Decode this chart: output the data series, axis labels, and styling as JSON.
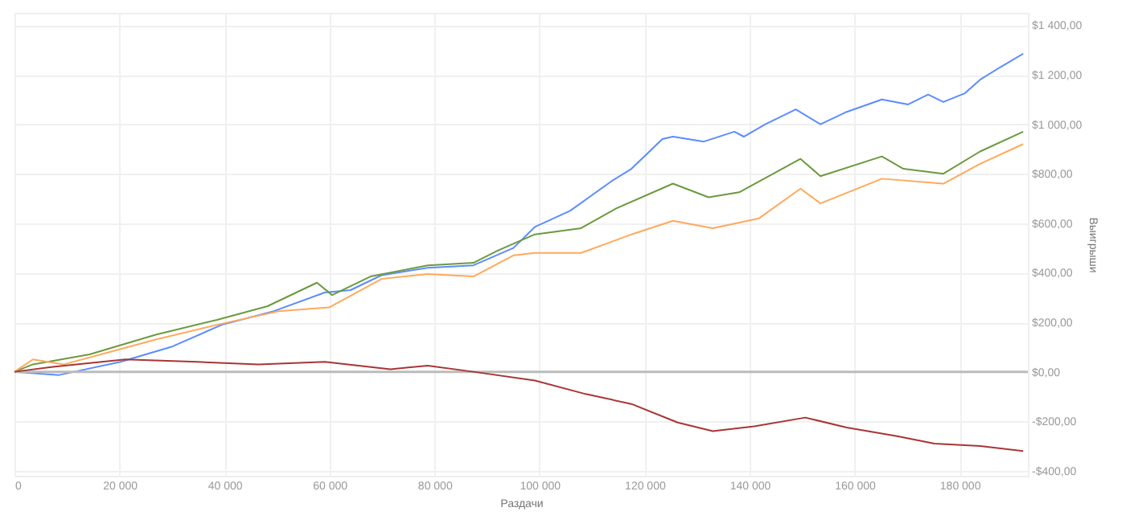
{
  "chart_data": {
    "type": "line",
    "xlabel": "Раздачи",
    "ylabel": "Выигрыши",
    "xlim": [
      0,
      193000
    ],
    "ylim": [
      -420,
      1450
    ],
    "xticks": [
      {
        "value": 0,
        "label": "0"
      },
      {
        "value": 20000,
        "label": "20 000"
      },
      {
        "value": 40000,
        "label": "40 000"
      },
      {
        "value": 60000,
        "label": "60 000"
      },
      {
        "value": 80000,
        "label": "80 000"
      },
      {
        "value": 100000,
        "label": "100 000"
      },
      {
        "value": 120000,
        "label": "120 000"
      },
      {
        "value": 140000,
        "label": "140 000"
      },
      {
        "value": 160000,
        "label": "160 000"
      },
      {
        "value": 180000,
        "label": "180 000"
      }
    ],
    "yticks": [
      {
        "value": -400,
        "label": "-$400,00"
      },
      {
        "value": -200,
        "label": "-$200,00"
      },
      {
        "value": 0,
        "label": "$0,00"
      },
      {
        "value": 200,
        "label": "$200,00"
      },
      {
        "value": 400,
        "label": "$400,00"
      },
      {
        "value": 600,
        "label": "$600,00"
      },
      {
        "value": 800,
        "label": "$800,00"
      },
      {
        "value": 1000,
        "label": "$1 000,00"
      },
      {
        "value": 1200,
        "label": "$1 200,00"
      },
      {
        "value": 1400,
        "label": "$1 400,00"
      }
    ],
    "grid": true,
    "line_style": "solid",
    "marker": "none",
    "ref_lines": [
      {
        "axis": "y",
        "value": 0,
        "color": "#bbbbbb"
      }
    ],
    "series": [
      {
        "color": "#5b8cff",
        "x": [
          0,
          8500,
          20200,
          29800,
          39500,
          49400,
          59100,
          64000,
          69900,
          78700,
          87400,
          95000,
          99100,
          105800,
          113700,
          117500,
          123400,
          125400,
          131300,
          137100,
          138900,
          143000,
          148800,
          153500,
          158500,
          165200,
          170200,
          174000,
          176900,
          181000,
          183900,
          187700,
          192100
        ],
        "values": [
          0,
          -13,
          40,
          100,
          190,
          245,
          320,
          330,
          390,
          420,
          430,
          500,
          585,
          650,
          770,
          820,
          940,
          950,
          930,
          970,
          950,
          1000,
          1060,
          1000,
          1050,
          1100,
          1080,
          1120,
          1090,
          1125,
          1180,
          1230,
          1285
        ]
      },
      {
        "color": "#6b9a3e",
        "x": [
          0,
          3500,
          14300,
          26900,
          38600,
          48200,
          57600,
          60500,
          67800,
          78700,
          87400,
          92100,
          99100,
          107900,
          114600,
          125400,
          132200,
          138000,
          149700,
          153500,
          165200,
          169300,
          176900,
          183900,
          192100
        ],
        "values": [
          0,
          30,
          70,
          150,
          210,
          265,
          360,
          310,
          385,
          430,
          440,
          490,
          555,
          580,
          660,
          760,
          705,
          725,
          860,
          790,
          870,
          820,
          800,
          890,
          970
        ]
      },
      {
        "color": "#ffa95a",
        "x": [
          0,
          3500,
          9400,
          19000,
          26900,
          38600,
          50300,
          59900,
          69900,
          78700,
          87400,
          95000,
          99100,
          107900,
          117500,
          125400,
          133000,
          141800,
          149700,
          153500,
          165200,
          176900,
          183900,
          192100
        ],
        "values": [
          0,
          50,
          30,
          85,
          130,
          190,
          245,
          260,
          375,
          395,
          385,
          470,
          480,
          480,
          555,
          610,
          580,
          620,
          740,
          680,
          780,
          760,
          840,
          920
        ]
      },
      {
        "color": "#a83535",
        "x": [
          0,
          7300,
          21100,
          34800,
          46500,
          59100,
          71600,
          78700,
          87400,
          99100,
          108800,
          117500,
          126300,
          133000,
          140900,
          150600,
          158500,
          168100,
          175200,
          183900,
          192100
        ],
        "values": [
          0,
          20,
          50,
          40,
          30,
          40,
          10,
          25,
          0,
          -35,
          -90,
          -130,
          -205,
          -240,
          -220,
          -185,
          -225,
          -260,
          -290,
          -300,
          -320
        ]
      }
    ]
  }
}
